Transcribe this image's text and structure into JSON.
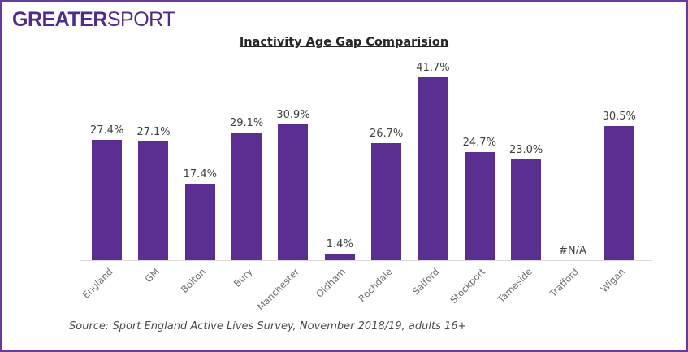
{
  "logo": {
    "bold": "GREATER",
    "light": "SPORT"
  },
  "title": "Inactivity Age Gap Comparision",
  "source_note": "Source: Sport England Active Lives Survey, November 2018/19, adults 16+",
  "colors": {
    "brand_purple": "#4f2c8a",
    "border_purple": "#6a3b9e",
    "bar_purple": "#5b2f91",
    "data_label": "#404040",
    "category_label": "#6e6e6e",
    "axis_line": "#d9d9d9",
    "title_text": "#262626",
    "source_text": "#4a4a4a"
  },
  "chart_data": {
    "type": "bar",
    "title": "Inactivity Age Gap Comparision",
    "categories": [
      "England",
      "GM",
      "Bolton",
      "Bury",
      "Manchester",
      "Oldham",
      "Rochdale",
      "Salford",
      "Stockport",
      "Tameside",
      "Trafford",
      "Wigan"
    ],
    "values": [
      27.4,
      27.1,
      17.4,
      29.1,
      30.9,
      1.4,
      26.7,
      41.7,
      24.7,
      23.0,
      null,
      30.5
    ],
    "data_labels": [
      "27.4%",
      "27.1%",
      "17.4%",
      "29.1%",
      "30.9%",
      "1.4%",
      "26.7%",
      "41.7%",
      "24.7%",
      "23.0%",
      "#N/A",
      "30.5%"
    ],
    "bar_color": "#5b2f91",
    "xlabel": "",
    "ylabel": "",
    "ylim": [
      0,
      45
    ],
    "grid": false,
    "legend": false,
    "x_axis_label_rotation_deg": 45
  }
}
